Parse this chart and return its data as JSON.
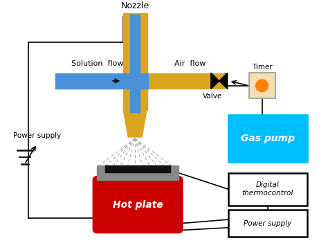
{
  "fig_width": 4.74,
  "fig_height": 3.51,
  "dpi": 100,
  "background_color": "#ffffff",
  "nozzle_label": "Nozzle",
  "solution_flow_label": "Solution  flow",
  "air_flow_label": "Air  flow",
  "power_supply_label": "Power supply",
  "valve_label": "Valve",
  "timer_label": "Timer",
  "gas_pump_label": "Gas pump",
  "hot_plate_label": "Hot plate",
  "digital_thermo_label": "Digital\nthermocontrol",
  "power_supply2_label": "Power supply",
  "nozzle_color": "#DAA520",
  "blue_color": "#4A90D9",
  "red_color": "#CC0000",
  "gas_pump_color": "#00BFFF",
  "timer_color": "#F5DEB3",
  "gray_color": "#888888",
  "black_color": "#111111"
}
